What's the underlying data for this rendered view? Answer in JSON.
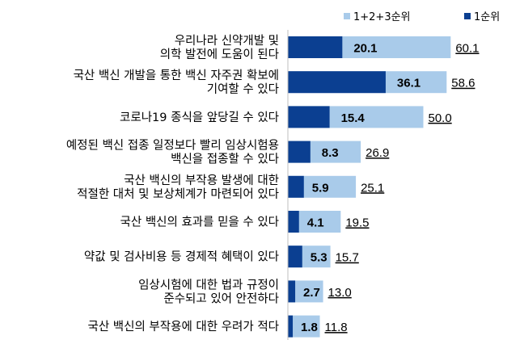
{
  "chart_data": {
    "type": "bar",
    "orientation": "horizontal",
    "categories": [
      [
        "우리나라 신약개발 및",
        "의학 발전에 도움이 된다"
      ],
      [
        "국산 백신 개발을 통한 백신 자주권 확보에",
        "기여할 수 있다"
      ],
      [
        "코로나19 종식을 앞당길 수 있다"
      ],
      [
        "예정된 백신 접종 일정보다 빨리 임상시험용",
        "백신을 접종할 수 있다"
      ],
      [
        "국산 백신의 부작용 발생에 대한",
        "적절한 대처 및 보상체계가 마련되어 있다"
      ],
      [
        "국산 백신의 효과를 믿을 수 있다"
      ],
      [
        "약값 및 검사비용 등 경제적 혜택이 있다"
      ],
      [
        "임상시험에 대한 법과 규정이",
        "준수되고 있어 안전하다"
      ],
      [
        "국산 백신의 부작용에 대한 우려가 적다"
      ]
    ],
    "series": [
      {
        "name": "1+2+3순위",
        "color": "#a9cbea",
        "values": [
          60.1,
          58.6,
          50.0,
          26.9,
          25.1,
          19.5,
          15.7,
          13.0,
          11.8
        ],
        "labels": [
          "60.1",
          "58.6",
          "50.0",
          "26.9",
          "25.1",
          "19.5",
          "15.7",
          "13.0",
          "11.8"
        ]
      },
      {
        "name": "1순위",
        "color": "#0b3f91",
        "values": [
          20.1,
          36.1,
          15.4,
          8.3,
          5.9,
          4.1,
          5.3,
          2.7,
          1.8
        ],
        "labels": [
          "20.1",
          "36.1",
          "15.4",
          "8.3",
          "5.9",
          "4.1",
          "5.3",
          "2.7",
          "1.8"
        ]
      }
    ],
    "xlim": [
      0,
      70
    ],
    "legend_position": "top-right",
    "grid": false
  }
}
